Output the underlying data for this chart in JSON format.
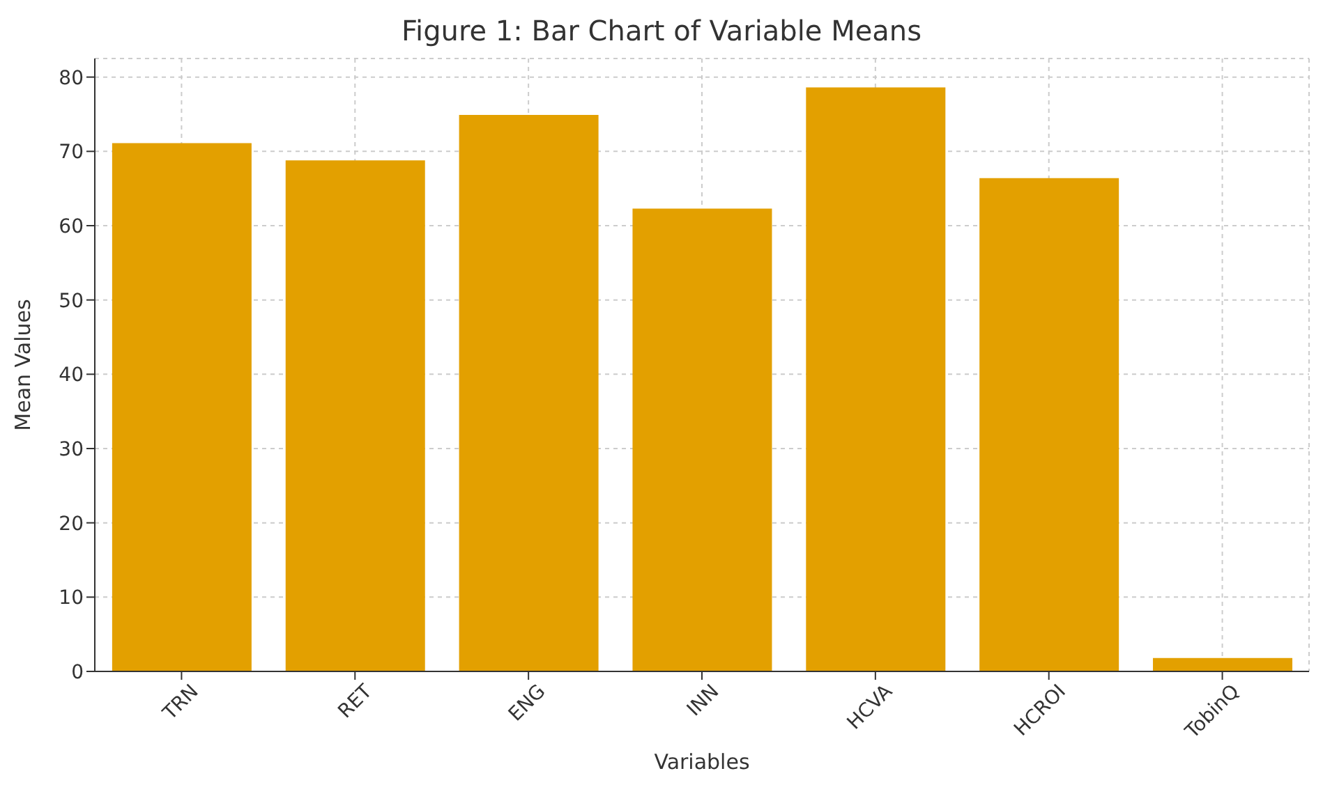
{
  "chart_data": {
    "type": "bar",
    "title": "Figure 1: Bar Chart of Variable Means",
    "xlabel": "Variables",
    "ylabel": "Mean Values",
    "categories": [
      "TRN",
      "RET",
      "ENG",
      "INN",
      "HCVA",
      "HCROI",
      "TobinQ"
    ],
    "values": [
      71.1,
      68.8,
      74.9,
      62.3,
      78.6,
      66.4,
      1.8
    ],
    "color": "#e3a000",
    "ylim": [
      0,
      82.5
    ],
    "yticks": [
      0,
      10,
      20,
      30,
      40,
      50,
      60,
      70,
      80
    ],
    "grid": true
  }
}
